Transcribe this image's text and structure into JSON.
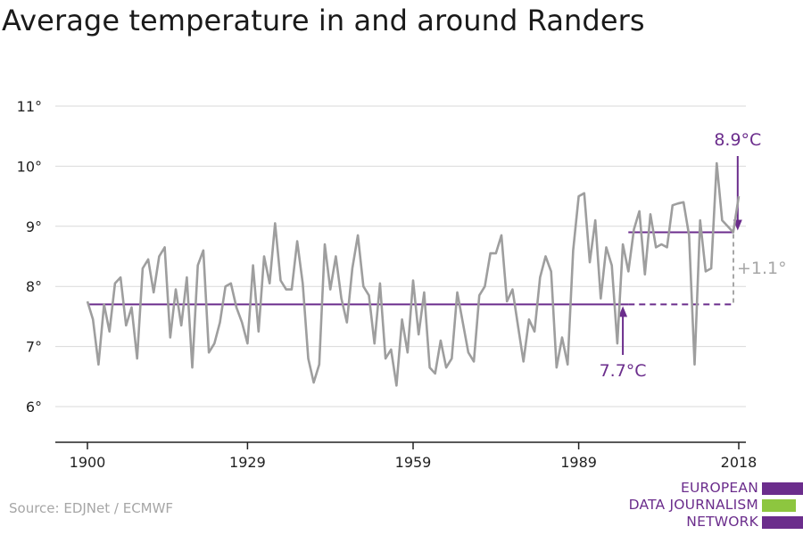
{
  "title": "Average temperature in and around Randers",
  "source": "Source: EDJNet / ECMWF",
  "logo": {
    "lines": [
      "EUROPEAN",
      "DATA JOURNALISM",
      "NETWORK"
    ],
    "colors": {
      "purple": "#6b2d8c",
      "green": "#8dc63f"
    }
  },
  "colors": {
    "series": "#9e9e9e",
    "accent": "#6b2d8c",
    "grid": "#d9d9d9",
    "axis": "#222222"
  },
  "chart_data": {
    "type": "line",
    "title": "Average temperature in and around Randers",
    "xlabel": "",
    "ylabel": "",
    "xlim": [
      1900,
      2018
    ],
    "ylim": [
      5.5,
      11.2
    ],
    "x_ticks": [
      1900,
      1929,
      1959,
      1989,
      2018
    ],
    "x_tick_labels": [
      "1900",
      "1929",
      "1959",
      "1989",
      "2018"
    ],
    "y_ticks": [
      6,
      7,
      8,
      9,
      10,
      11
    ],
    "y_tick_labels": [
      "6°",
      "7°",
      "8°",
      "9°",
      "10°",
      "11°"
    ],
    "grid": true,
    "series": [
      {
        "x": [
          1900,
          1901,
          1902,
          1903,
          1904,
          1905,
          1906,
          1907,
          1908,
          1909,
          1910,
          1911,
          1912,
          1913,
          1914,
          1915,
          1916,
          1917,
          1918,
          1919,
          1920,
          1921,
          1922,
          1923,
          1924,
          1925,
          1926,
          1927,
          1928,
          1929,
          1930,
          1931,
          1932,
          1933,
          1934,
          1935,
          1936,
          1937,
          1938,
          1939,
          1940,
          1941,
          1942,
          1943,
          1944,
          1945,
          1946,
          1947,
          1948,
          1949,
          1950,
          1951,
          1952,
          1953,
          1954,
          1955,
          1956,
          1957,
          1958,
          1959,
          1960,
          1961,
          1962,
          1963,
          1964,
          1965,
          1966,
          1967,
          1968,
          1969,
          1970,
          1971,
          1972,
          1973,
          1974,
          1975,
          1976,
          1977,
          1978,
          1979,
          1980,
          1981,
          1982,
          1983,
          1984,
          1985,
          1986,
          1987,
          1988,
          1989,
          1990,
          1991,
          1992,
          1993,
          1994,
          1995,
          1996,
          1997,
          1998,
          1999,
          2000,
          2001,
          2002,
          2003,
          2004,
          2005,
          2006,
          2007,
          2008,
          2009,
          2010,
          2011,
          2012,
          2013,
          2014,
          2015,
          2016,
          2017,
          2018
        ],
        "values": [
          7.75,
          7.45,
          6.7,
          7.7,
          7.25,
          8.05,
          8.15,
          7.35,
          7.65,
          6.8,
          8.3,
          8.45,
          7.9,
          8.5,
          8.65,
          7.15,
          7.95,
          7.35,
          8.15,
          6.65,
          8.35,
          8.6,
          6.9,
          7.05,
          7.4,
          8.0,
          8.05,
          7.65,
          7.4,
          7.05,
          8.35,
          7.25,
          8.5,
          8.05,
          9.05,
          8.1,
          7.95,
          7.95,
          8.75,
          8.05,
          6.8,
          6.4,
          6.7,
          8.7,
          7.95,
          8.5,
          7.8,
          7.4,
          8.3,
          8.85,
          8.0,
          7.85,
          7.05,
          8.05,
          6.8,
          6.95,
          6.35,
          7.45,
          6.9,
          8.1,
          7.2,
          7.9,
          6.65,
          6.55,
          7.1,
          6.65,
          6.8,
          7.9,
          7.4,
          6.9,
          6.75,
          7.85,
          8.0,
          8.55,
          8.55,
          8.85,
          7.75,
          7.95,
          7.35,
          6.75,
          7.45,
          7.25,
          8.15,
          8.5,
          8.25,
          6.65,
          7.15,
          6.7,
          8.6,
          9.5,
          9.55,
          8.4,
          9.1,
          7.8,
          8.65,
          8.35,
          7.05,
          8.7,
          8.25,
          8.95,
          9.25,
          8.2,
          9.2,
          8.65,
          8.7,
          8.65,
          9.35,
          9.38,
          9.4,
          8.85,
          6.7,
          9.1,
          8.25,
          8.3,
          10.05,
          9.1,
          9.0,
          8.9,
          9.5
        ]
      }
    ],
    "baseline": {
      "value": 7.7,
      "from": 1900,
      "to": 2018,
      "solid_until": 1998,
      "label": "7.7°C",
      "arrow_x": 1997
    },
    "recent_mean": {
      "value": 8.9,
      "from": 1998,
      "to": 2018,
      "label": "8.9°C",
      "arrow_x": 2017
    },
    "difference": {
      "label": "+1.1°"
    }
  }
}
